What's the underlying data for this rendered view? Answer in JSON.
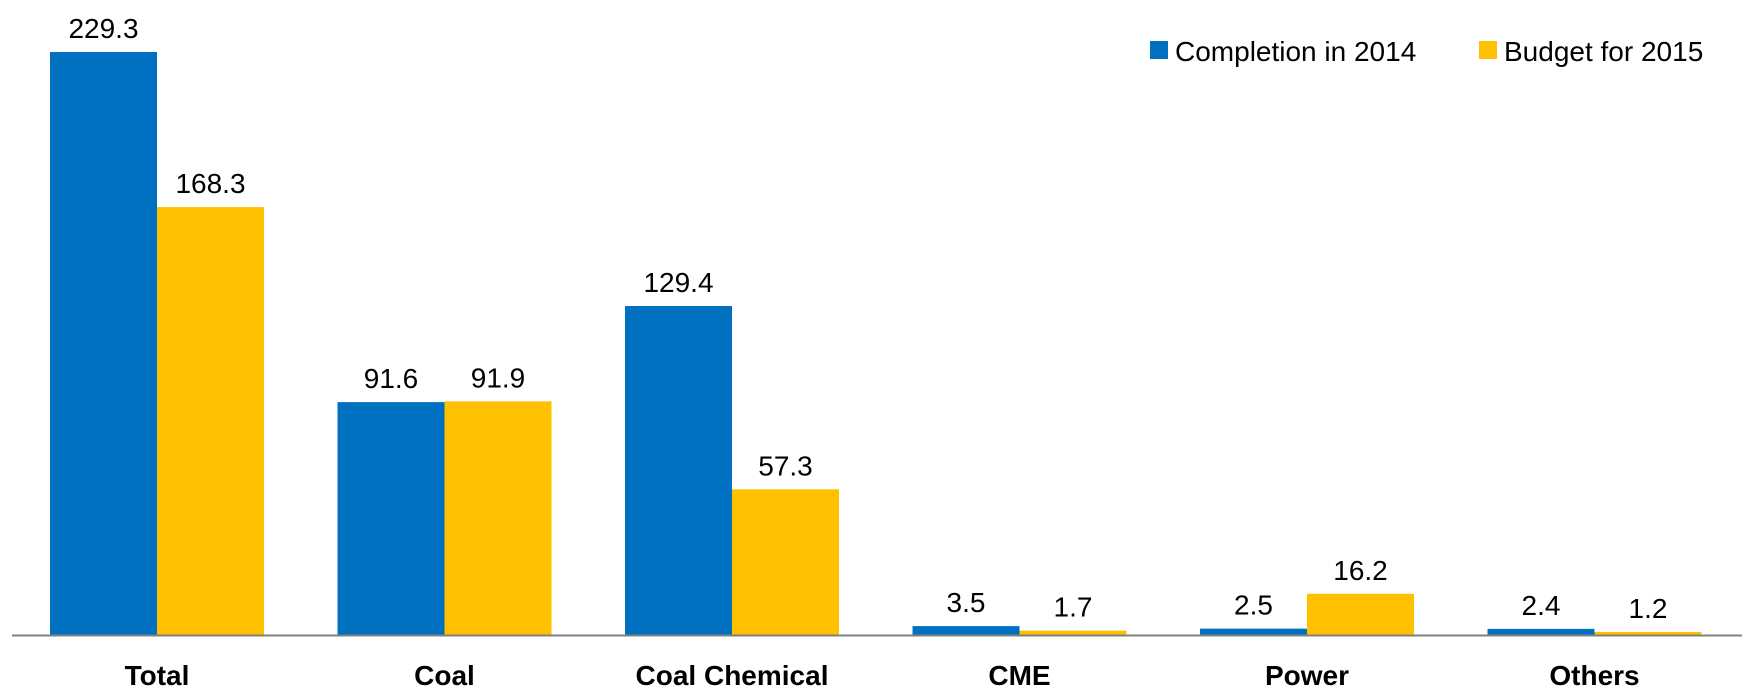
{
  "chart_data": {
    "type": "bar",
    "categories": [
      "Total",
      "Coal",
      "Coal Chemical",
      "CME",
      "Power",
      "Others"
    ],
    "series": [
      {
        "name": "Completion in 2014",
        "color": "#0070C0",
        "values": [
          229.3,
          91.6,
          129.4,
          3.5,
          2.5,
          2.4
        ],
        "labels": [
          "229.3",
          "91.6",
          "129.4",
          "3.5",
          "2.5",
          "2.4"
        ]
      },
      {
        "name": "Budget for 2015",
        "color": "#FFC000",
        "values": [
          168.3,
          91.9,
          57.3,
          1.7,
          16.2,
          1.2
        ],
        "labels": [
          "168.3",
          "91.9",
          "57.3",
          "1.7",
          "16.2",
          "1.2"
        ]
      }
    ],
    "ylim": [
      0,
      229.3
    ],
    "grid": false,
    "legend_position": "top-right",
    "axis_color": "#808080"
  }
}
